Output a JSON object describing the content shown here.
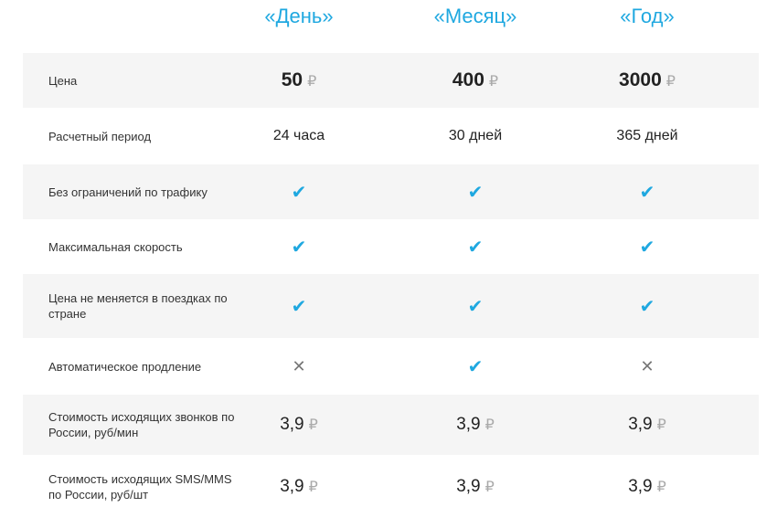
{
  "plans": [
    "«День»",
    "«Месяц»",
    "«Год»"
  ],
  "currency": "₽",
  "colors": {
    "accent": "#1fa8e0",
    "row_alt": "#f5f5f5"
  },
  "rows": [
    {
      "label": "Цена",
      "type": "price",
      "values": [
        "50",
        "400",
        "3000"
      ]
    },
    {
      "label": "Расчетный период",
      "type": "text",
      "values": [
        "24 часа",
        "30 дней",
        "365 дней"
      ]
    },
    {
      "label": "Без ограничений по трафику",
      "type": "icon",
      "values": [
        "check-icon",
        "check-icon",
        "check-icon"
      ]
    },
    {
      "label": "Максимальная скорость",
      "type": "icon",
      "values": [
        "check-icon",
        "check-icon",
        "check-icon"
      ]
    },
    {
      "label": "Цена не меняется в поездках по стране",
      "type": "icon",
      "values": [
        "check-icon",
        "check-icon",
        "check-icon"
      ]
    },
    {
      "label": "Автоматическое продление",
      "type": "icon",
      "values": [
        "cross-icon",
        "check-icon",
        "cross-icon"
      ]
    },
    {
      "label": "Стоимость исходящих звонков по России, руб/мин",
      "type": "rate",
      "values": [
        "3,9",
        "3,9",
        "3,9"
      ]
    },
    {
      "label": "Стоимость исходящих SMS/MMS по России, руб/шт",
      "type": "rate",
      "values": [
        "3,9",
        "3,9",
        "3,9"
      ]
    }
  ]
}
